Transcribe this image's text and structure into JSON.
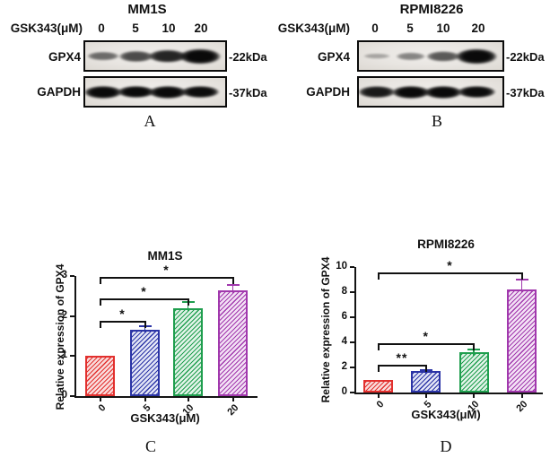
{
  "figure": {
    "blot_panels": [
      {
        "panel_letter": "A",
        "title": "MM1S",
        "dose_label": "GSK343(μM)",
        "doses": [
          "0",
          "5",
          "10",
          "20"
        ],
        "rows": [
          {
            "protein": "GPX4",
            "marker": "-22kDa",
            "band_intensities": [
              0.45,
              0.62,
              0.82,
              1.0
            ]
          },
          {
            "protein": "GAPDH",
            "marker": "-37kDa",
            "band_intensities": [
              1.0,
              0.97,
              1.0,
              0.95
            ]
          }
        ]
      },
      {
        "panel_letter": "B",
        "title": "RPMI8226",
        "dose_label": "GSK343(μM)",
        "doses": [
          "0",
          "5",
          "10",
          "20"
        ],
        "rows": [
          {
            "protein": "GPX4",
            "marker": "-22kDa",
            "band_intensities": [
              0.14,
              0.32,
              0.55,
              1.0
            ]
          },
          {
            "protein": "GAPDH",
            "marker": "-37kDa",
            "band_intensities": [
              0.88,
              1.0,
              1.0,
              0.95
            ]
          }
        ]
      }
    ]
  },
  "chart_data": [
    {
      "type": "bar",
      "panel_letter": "C",
      "title": "MM1S",
      "xlabel": "GSK343(μM)",
      "ylabel": "Relative expression of GPX4",
      "categories": [
        "0",
        "5",
        "10",
        "20"
      ],
      "values": [
        1.0,
        1.65,
        2.2,
        2.65
      ],
      "errors": [
        0,
        0.12,
        0.17,
        0.15
      ],
      "ylim": [
        0,
        3
      ],
      "yticks": [
        0,
        1,
        2,
        3
      ],
      "grid": false,
      "legend": "none",
      "bar_stroke": [
        "#e2302e",
        "#2b34a6",
        "#1f9e4e",
        "#a138ad"
      ],
      "bar_fill": [
        "#f9dcdc",
        "#e2e5f6",
        "#e1f3e8",
        "#f3e1f5"
      ],
      "significance": [
        {
          "from": 0,
          "to": 1,
          "label": "*",
          "y": 1.88
        },
        {
          "from": 0,
          "to": 2,
          "label": "*",
          "y": 2.44
        },
        {
          "from": 0,
          "to": 3,
          "label": "*",
          "y": 2.97
        }
      ]
    },
    {
      "type": "bar",
      "panel_letter": "D",
      "title": "RPMI8226",
      "xlabel": "GSK343(μM)",
      "ylabel": "Relative expression of GPX4",
      "categories": [
        "0",
        "5",
        "10",
        "20"
      ],
      "values": [
        1.0,
        1.7,
        3.2,
        8.2
      ],
      "errors": [
        0,
        0.15,
        0.3,
        0.9
      ],
      "ylim": [
        0,
        10
      ],
      "yticks": [
        0,
        2,
        4,
        6,
        8,
        10
      ],
      "grid": false,
      "legend": "none",
      "bar_stroke": [
        "#e2302e",
        "#2b34a6",
        "#1f9e4e",
        "#a138ad"
      ],
      "bar_fill": [
        "#f9dcdc",
        "#e2e5f6",
        "#e1f3e8",
        "#f3e1f5"
      ],
      "significance": [
        {
          "from": 0,
          "to": 1,
          "label": "**",
          "y": 2.2
        },
        {
          "from": 0,
          "to": 2,
          "label": "*",
          "y": 3.9
        },
        {
          "from": 0,
          "to": 3,
          "label": "*",
          "y": 9.6
        }
      ]
    }
  ]
}
